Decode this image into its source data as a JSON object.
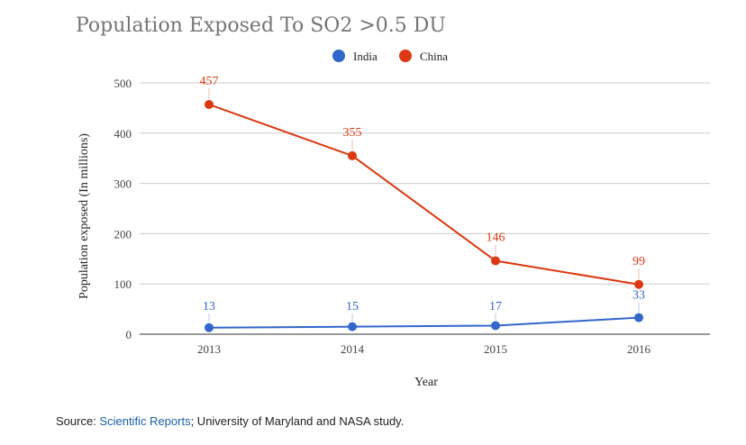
{
  "chart_data": {
    "type": "line",
    "title": "Population Exposed To SO2 >0.5 DU",
    "xlabel": "Year",
    "ylabel": "Population exposed (In millions)",
    "categories": [
      "2013",
      "2014",
      "2015",
      "2016"
    ],
    "ylim": [
      0,
      500
    ],
    "yticks": [
      0,
      100,
      200,
      300,
      400,
      500
    ],
    "grid": true,
    "legend_position": "top-center",
    "series": [
      {
        "name": "India",
        "color": "#3366cc",
        "values": [
          13,
          15,
          17,
          33
        ]
      },
      {
        "name": "China",
        "color": "#dc3912",
        "values": [
          457,
          355,
          146,
          99
        ]
      }
    ]
  },
  "source": {
    "prefix": "Source: ",
    "link_text": "Scientific Reports",
    "suffix": "; University of Maryland and NASA study."
  },
  "colors": {
    "grid": "#cccccc",
    "axis": "#333333",
    "title": "#757575"
  }
}
